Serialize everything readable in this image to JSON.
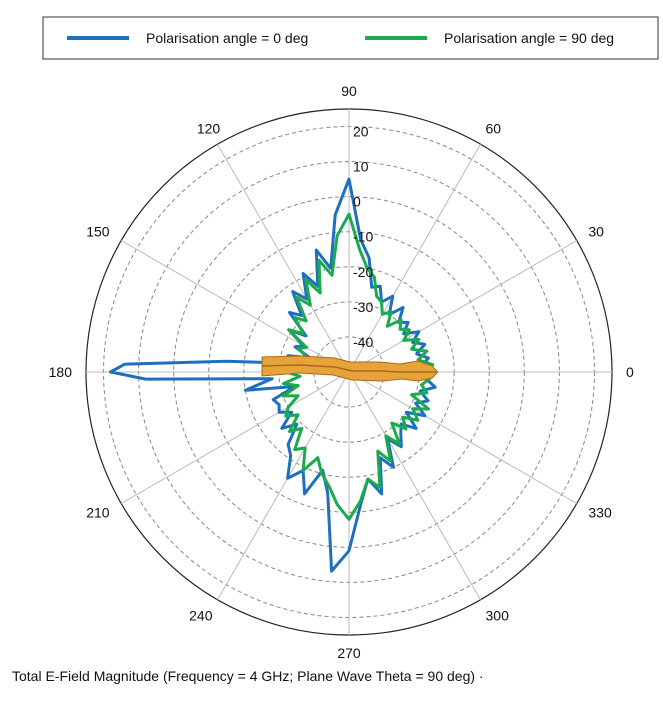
{
  "chart_data": {
    "type": "polar",
    "angle_unit": "deg",
    "radial_range": [
      -50,
      25
    ],
    "radial_ticks": [
      "20",
      "10",
      "0",
      "-10",
      "-20",
      "-30",
      "-40"
    ],
    "radial_tick_values": [
      20,
      10,
      0,
      -10,
      -20,
      -30,
      -40
    ],
    "angle_ticks": [
      0,
      30,
      60,
      90,
      120,
      150,
      180,
      210,
      240,
      270,
      300,
      330
    ],
    "angle_tick_labels": [
      "0",
      "30",
      "60",
      "90",
      "120",
      "150",
      "180",
      "210",
      "240",
      "270",
      "300",
      "330"
    ],
    "grid": true,
    "legend_placement": "top",
    "series": [
      {
        "name": "Polarisation angle = 0 deg",
        "color": "#1f6fbf",
        "theta": [
          0,
          5,
          10,
          15,
          20,
          25,
          30,
          35,
          40,
          45,
          50,
          55,
          60,
          65,
          70,
          75,
          80,
          85,
          90,
          95,
          100,
          105,
          110,
          115,
          120,
          125,
          130,
          135,
          140,
          145,
          150,
          155,
          160,
          165,
          170,
          175,
          178,
          180,
          182,
          185,
          190,
          195,
          200,
          205,
          210,
          215,
          220,
          225,
          230,
          235,
          240,
          245,
          250,
          255,
          260,
          265,
          270,
          275,
          280,
          285,
          290,
          295,
          300,
          305,
          310,
          315,
          320,
          325,
          330,
          335,
          340,
          345,
          350,
          355,
          360
        ],
        "r": [
          -26,
          -29,
          -27,
          -30,
          -27,
          -30,
          -27,
          -31,
          -28,
          -30,
          -26,
          -30,
          -25,
          -28,
          -24,
          -25,
          -17,
          -12,
          5,
          -5,
          -20,
          -14,
          -24,
          -19,
          -26,
          -22,
          -29,
          -26,
          -34,
          -29,
          -35,
          -33,
          -38,
          -32,
          -36,
          -15,
          14,
          18,
          8,
          -28,
          -20,
          -34,
          -27,
          -28,
          -27,
          -30,
          -25,
          -29,
          -23,
          -21,
          -15,
          -19,
          -13,
          -21,
          -15,
          7,
          1,
          -12,
          -19,
          -14,
          -24,
          -20,
          -28,
          -24,
          -27,
          -29,
          -25,
          -30,
          -25,
          -29,
          -26,
          -29,
          -25,
          -28,
          -26
        ]
      },
      {
        "name": "Polarisation angle = 90 deg",
        "color": "#1aab4c",
        "theta": [
          0,
          5,
          10,
          15,
          20,
          25,
          30,
          35,
          40,
          45,
          50,
          55,
          60,
          65,
          70,
          75,
          80,
          85,
          90,
          95,
          100,
          105,
          110,
          115,
          120,
          125,
          130,
          135,
          140,
          145,
          150,
          155,
          160,
          165,
          170,
          175,
          180,
          185,
          190,
          195,
          200,
          205,
          210,
          215,
          220,
          225,
          230,
          235,
          240,
          245,
          250,
          255,
          260,
          265,
          270,
          275,
          280,
          285,
          290,
          295,
          300,
          305,
          310,
          315,
          320,
          325,
          330,
          335,
          340,
          345,
          350,
          355,
          360
        ],
        "r": [
          -28,
          -26,
          -30,
          -27,
          -31,
          -28,
          -32,
          -29,
          -31,
          -29,
          -33,
          -29,
          -31,
          -28,
          -27,
          -22,
          -20,
          -15,
          -5,
          -11,
          -22,
          -17,
          -26,
          -21,
          -28,
          -24,
          -31,
          -28,
          -33,
          -29,
          -36,
          -34,
          -37,
          -35,
          -38,
          -34,
          -32,
          -36,
          -31,
          -35,
          -30,
          -34,
          -30,
          -28,
          -31,
          -26,
          -29,
          -23,
          -25,
          -19,
          -24,
          -20,
          -17,
          -12,
          -8,
          -13,
          -19,
          -16,
          -26,
          -22,
          -29,
          -25,
          -31,
          -27,
          -30,
          -26,
          -29,
          -25,
          -31,
          -27,
          -29,
          -27,
          -28
        ]
      }
    ],
    "caption": "Total E-Field Magnitude (Frequency = 4 GHz; Plane Wave Theta = 90 deg) ·",
    "model_color": "#e8a23a"
  }
}
